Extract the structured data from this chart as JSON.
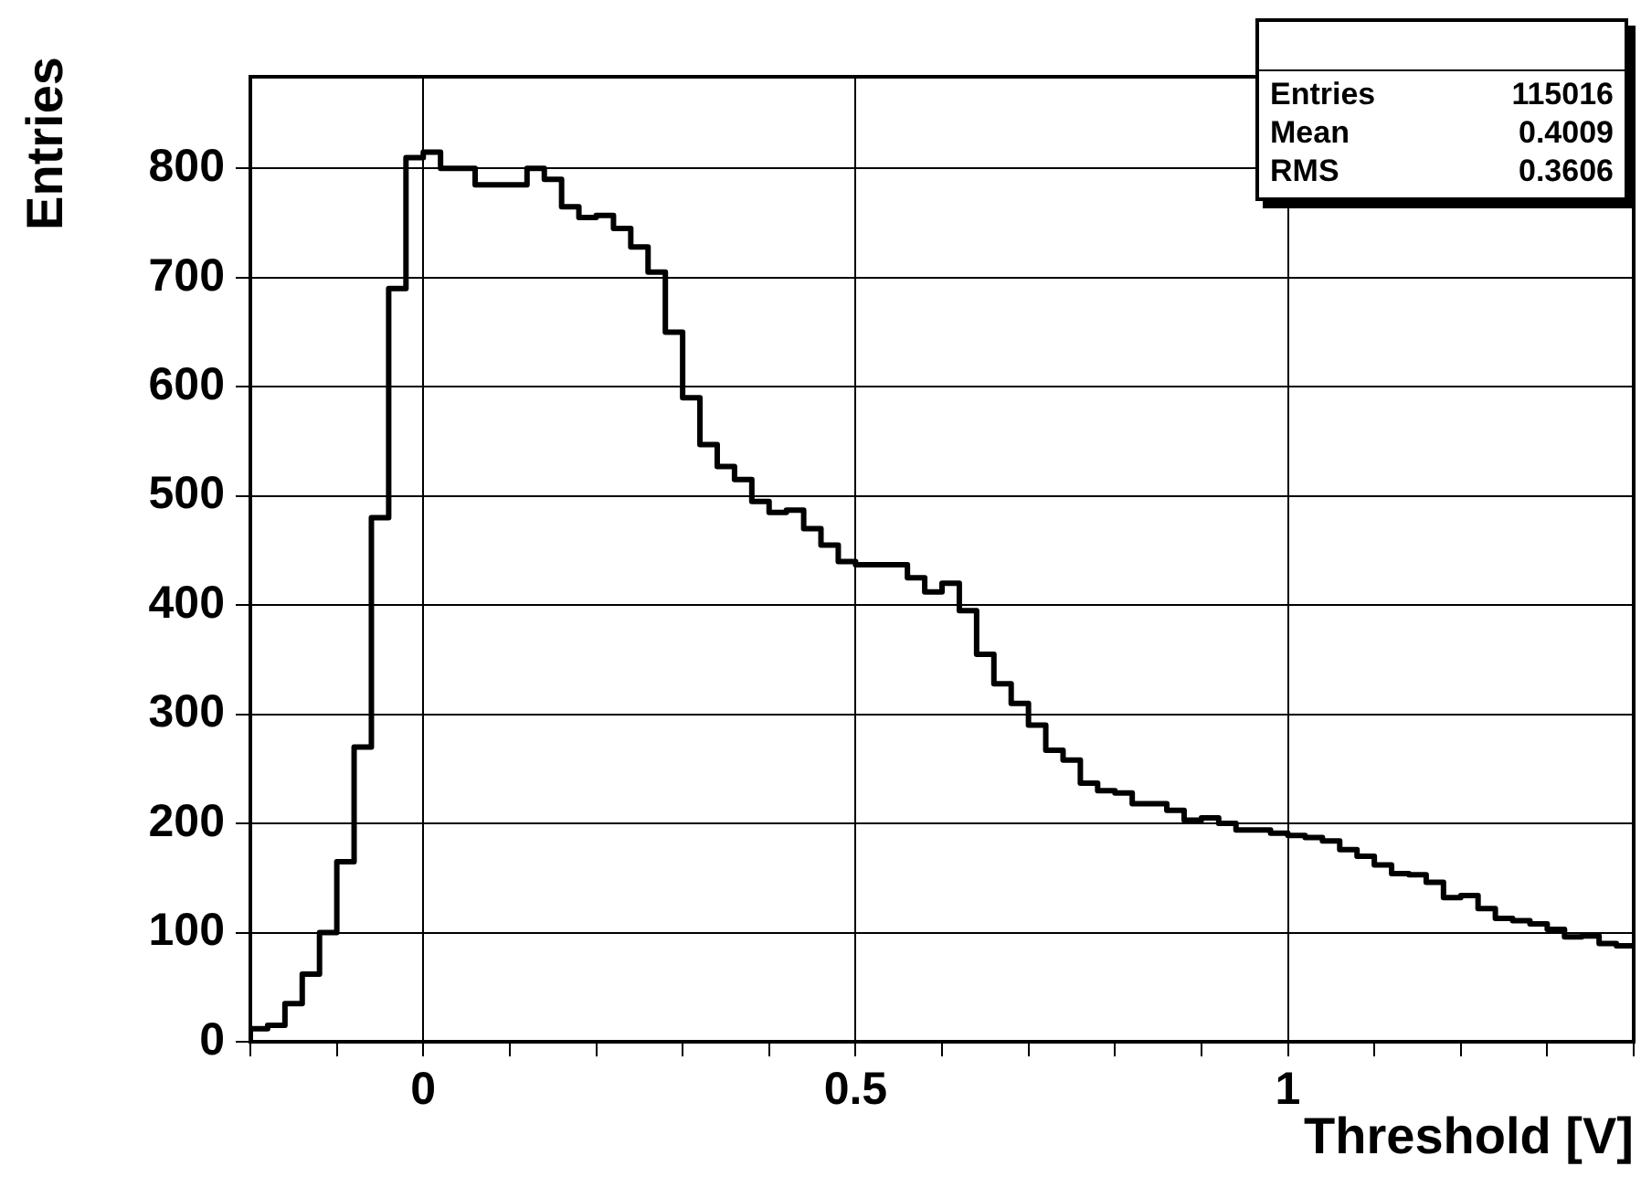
{
  "chart_data": {
    "type": "histogram",
    "xlabel": "Threshold [V]",
    "ylabel": "Entries",
    "color": "#000000",
    "bins": [
      -0.2,
      -0.18,
      -0.16,
      -0.14,
      -0.12,
      -0.1,
      -0.08,
      -0.06,
      -0.04,
      -0.02,
      0,
      0.02,
      0.04,
      0.06,
      0.08,
      0.1,
      0.12,
      0.14,
      0.16,
      0.18,
      0.2,
      0.22,
      0.24,
      0.26,
      0.28,
      0.3,
      0.32,
      0.34,
      0.36,
      0.38,
      0.4,
      0.42,
      0.44,
      0.46,
      0.48,
      0.5,
      0.52,
      0.54,
      0.56,
      0.58,
      0.6,
      0.62,
      0.64,
      0.66,
      0.68,
      0.7,
      0.72,
      0.74,
      0.76,
      0.78,
      0.8,
      0.82,
      0.84,
      0.86,
      0.88,
      0.9,
      0.92,
      0.94,
      0.96,
      0.98,
      1,
      1.02,
      1.04,
      1.06,
      1.08,
      1.1,
      1.12,
      1.14,
      1.16,
      1.18,
      1.2,
      1.22,
      1.24,
      1.26,
      1.28,
      1.3,
      1.32,
      1.34,
      1.36,
      1.38,
      1.4
    ],
    "values": [
      12,
      15,
      35,
      62,
      100,
      165,
      270,
      480,
      690,
      810,
      815,
      800,
      800,
      785,
      785,
      785,
      800,
      790,
      765,
      755,
      757,
      745,
      728,
      705,
      650,
      590,
      547,
      527,
      515,
      495,
      485,
      487,
      470,
      455,
      440,
      437,
      437,
      437,
      425,
      412,
      420,
      395,
      355,
      328,
      310,
      290,
      267,
      258,
      237,
      230,
      228,
      218,
      218,
      212,
      203,
      205,
      200,
      194,
      194,
      191,
      189,
      187,
      184,
      176,
      170,
      162,
      154,
      153,
      146,
      132,
      134,
      122,
      113,
      111,
      108,
      103,
      96,
      97,
      90,
      88
    ],
    "xlim": [
      -0.2,
      1.4
    ],
    "xticks": [
      {
        "value": -0.2,
        "label": null
      },
      {
        "value": -0.1,
        "label": null
      },
      0,
      {
        "value": 0.1,
        "label": null
      },
      {
        "value": 0.2,
        "label": null
      },
      {
        "value": 0.3,
        "label": null
      },
      {
        "value": 0.4,
        "label": null
      },
      0.5,
      {
        "value": 0.6,
        "label": null
      },
      {
        "value": 0.7,
        "label": null
      },
      {
        "value": 0.8,
        "label": null
      },
      {
        "value": 0.9,
        "label": null
      },
      1,
      {
        "value": 1.1,
        "label": null
      },
      {
        "value": 1.2,
        "label": null
      },
      {
        "value": 1.3,
        "label": null
      },
      {
        "value": 1.4,
        "label": null
      }
    ],
    "ylim": [
      0,
      884
    ],
    "yticks": [
      0,
      100,
      200,
      300,
      400,
      500,
      600,
      700,
      800
    ],
    "grid": true,
    "annotations": [
      "Entries",
      "115016",
      "Mean",
      "0.4009",
      "RMS",
      "0.3606"
    ]
  }
}
